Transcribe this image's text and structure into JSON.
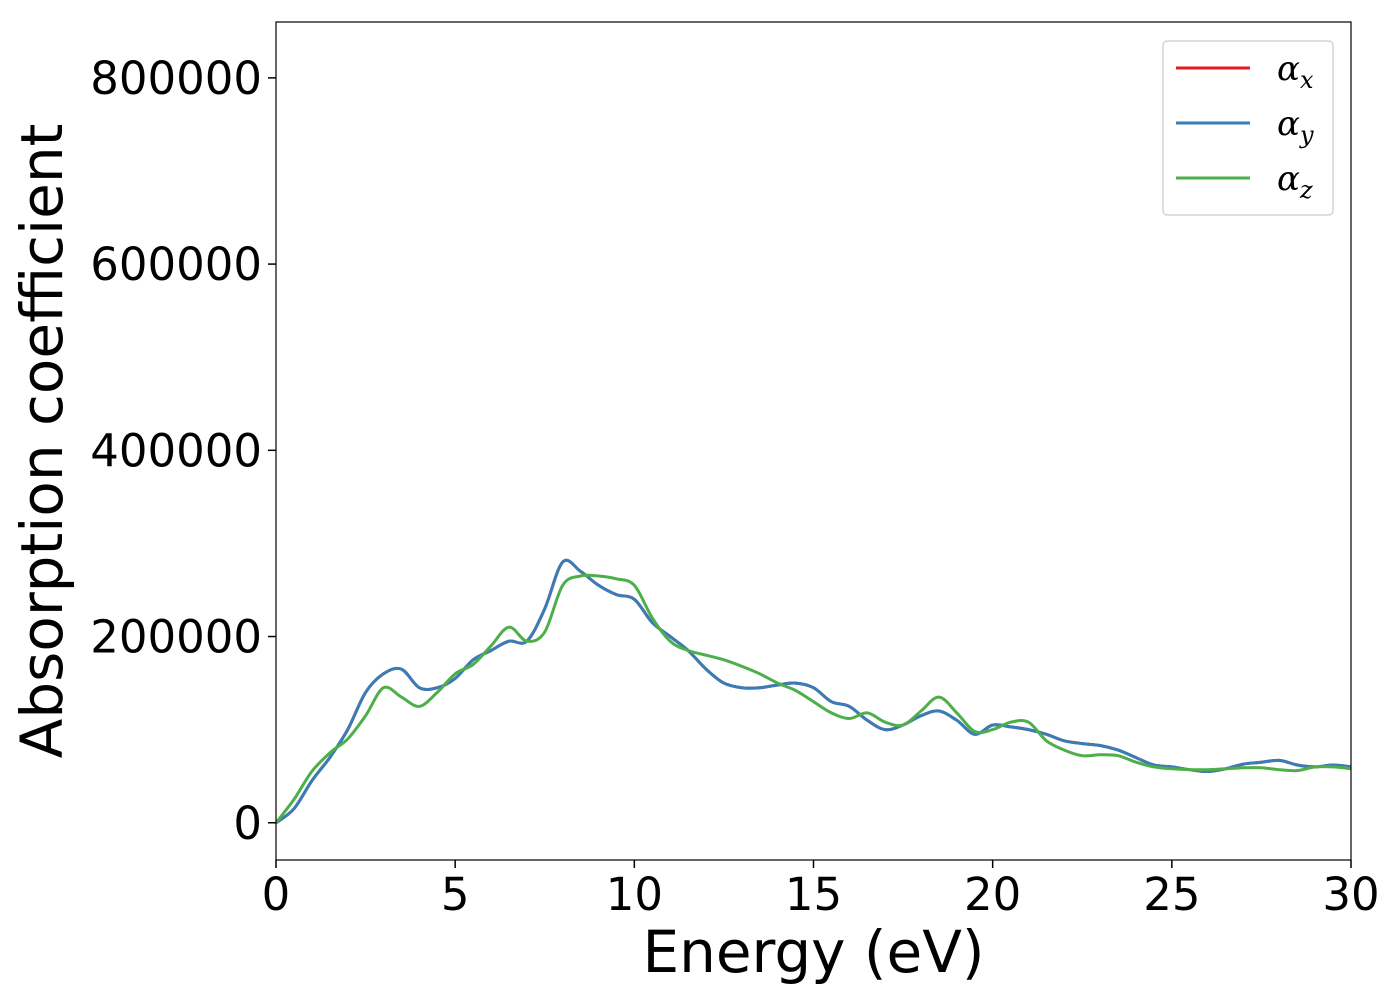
{
  "chart_data": {
    "type": "line",
    "xlabel": "Energy (eV)",
    "ylabel": "Absorption coefficient",
    "xlim": [
      0,
      30
    ],
    "ylim": [
      -40000,
      860000
    ],
    "x_ticks": [
      0,
      5,
      10,
      15,
      20,
      25,
      30
    ],
    "y_ticks": [
      0,
      200000,
      400000,
      600000,
      800000
    ],
    "grid": false,
    "legend_position": "top-right",
    "x": [
      0,
      0.5,
      1,
      1.5,
      2,
      2.5,
      3,
      3.5,
      4,
      4.5,
      5,
      5.5,
      6,
      6.5,
      7,
      7.5,
      8,
      8.5,
      9,
      9.5,
      10,
      10.5,
      11,
      11.5,
      12,
      12.5,
      13,
      13.5,
      14,
      14.5,
      15,
      15.5,
      16,
      16.5,
      17,
      17.5,
      18,
      18.5,
      19,
      19.5,
      20,
      20.5,
      21,
      21.5,
      22,
      22.5,
      23,
      23.5,
      24,
      24.5,
      25,
      25.5,
      26,
      26.5,
      27,
      27.5,
      28,
      28.5,
      29,
      29.5,
      30
    ],
    "series": [
      {
        "name": "αx",
        "symbol": "α",
        "subscript": "x",
        "color": "#e41a1c",
        "values": [
          0,
          15000,
          45000,
          70000,
          100000,
          140000,
          160000,
          165000,
          145000,
          145000,
          155000,
          175000,
          185000,
          195000,
          195000,
          230000,
          280000,
          270000,
          255000,
          245000,
          240000,
          215000,
          200000,
          185000,
          165000,
          150000,
          145000,
          145000,
          148000,
          150000,
          145000,
          130000,
          125000,
          110000,
          100000,
          105000,
          115000,
          120000,
          110000,
          95000,
          105000,
          103000,
          100000,
          95000,
          88000,
          85000,
          83000,
          78000,
          70000,
          62000,
          60000,
          57000,
          55000,
          58000,
          63000,
          65000,
          67000,
          62000,
          60000,
          62000,
          60000
        ]
      },
      {
        "name": "αy",
        "symbol": "α",
        "subscript": "y",
        "color": "#377eb8",
        "values": [
          0,
          15000,
          45000,
          70000,
          100000,
          140000,
          160000,
          165000,
          145000,
          145000,
          155000,
          175000,
          185000,
          195000,
          195000,
          230000,
          280000,
          270000,
          255000,
          245000,
          240000,
          215000,
          200000,
          185000,
          165000,
          150000,
          145000,
          145000,
          148000,
          150000,
          145000,
          130000,
          125000,
          110000,
          100000,
          105000,
          115000,
          120000,
          110000,
          95000,
          105000,
          103000,
          100000,
          95000,
          88000,
          85000,
          83000,
          78000,
          70000,
          62000,
          60000,
          57000,
          55000,
          58000,
          63000,
          65000,
          67000,
          62000,
          60000,
          62000,
          60000
        ]
      },
      {
        "name": "αz",
        "symbol": "α",
        "subscript": "z",
        "color": "#4daf4a",
        "values": [
          0,
          25000,
          55000,
          75000,
          90000,
          115000,
          145000,
          135000,
          125000,
          140000,
          160000,
          170000,
          190000,
          210000,
          195000,
          205000,
          255000,
          265000,
          265000,
          262000,
          255000,
          220000,
          195000,
          185000,
          180000,
          175000,
          168000,
          160000,
          150000,
          142000,
          130000,
          118000,
          112000,
          118000,
          108000,
          105000,
          120000,
          135000,
          118000,
          98000,
          100000,
          108000,
          108000,
          88000,
          78000,
          72000,
          73000,
          72000,
          65000,
          60000,
          58000,
          57000,
          57000,
          58000,
          59000,
          59000,
          57000,
          56000,
          60000,
          60000,
          58000
        ]
      }
    ]
  }
}
